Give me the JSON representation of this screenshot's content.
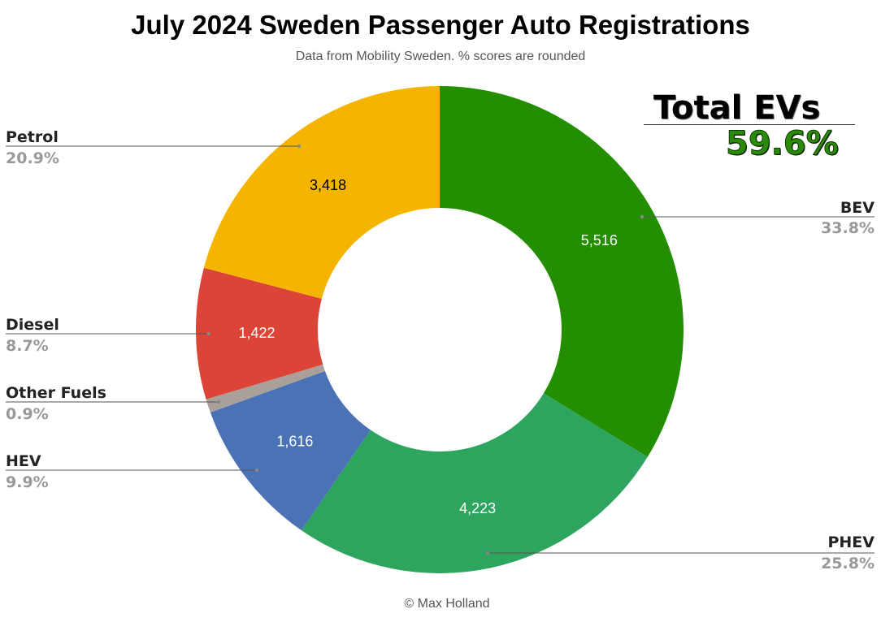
{
  "header": {
    "title": "July 2024 Sweden Passenger Auto Registrations",
    "subtitle": "Data from Mobility Sweden. % scores are rounded"
  },
  "callout": {
    "title": "Total EVs",
    "value": "59.6%"
  },
  "footer": {
    "credit": "© Max Holland"
  },
  "chart_data": {
    "type": "pie",
    "donut": true,
    "title": "July 2024 Sweden Passenger Auto Registrations",
    "subtitle": "Data from Mobility Sweden. % scores are rounded",
    "legend": "none",
    "slices": [
      {
        "name": "BEV",
        "value": 5516,
        "value_label": "5,516",
        "percent_label": "33.8%",
        "color": "#238f00",
        "value_text_color": "#ffffff"
      },
      {
        "name": "PHEV",
        "value": 4223,
        "value_label": "4,223",
        "percent_label": "25.8%",
        "color": "#2ea55f",
        "value_text_color": "#ffffff"
      },
      {
        "name": "HEV",
        "value": 1616,
        "value_label": "1,616",
        "percent_label": "9.9%",
        "color": "#4a72b5",
        "value_text_color": "#ffffff"
      },
      {
        "name": "Other Fuels",
        "value": 147,
        "value_label": "",
        "percent_label": "0.9%",
        "color": "#a9a09a",
        "value_text_color": "#ffffff"
      },
      {
        "name": "Diesel",
        "value": 1422,
        "value_label": "1,422",
        "percent_label": "8.7%",
        "color": "#db4437",
        "value_text_color": "#ffffff"
      },
      {
        "name": "Petrol",
        "value": 3418,
        "value_label": "3,418",
        "percent_label": "20.9%",
        "color": "#f4b400",
        "value_text_color": "#000000"
      }
    ]
  }
}
